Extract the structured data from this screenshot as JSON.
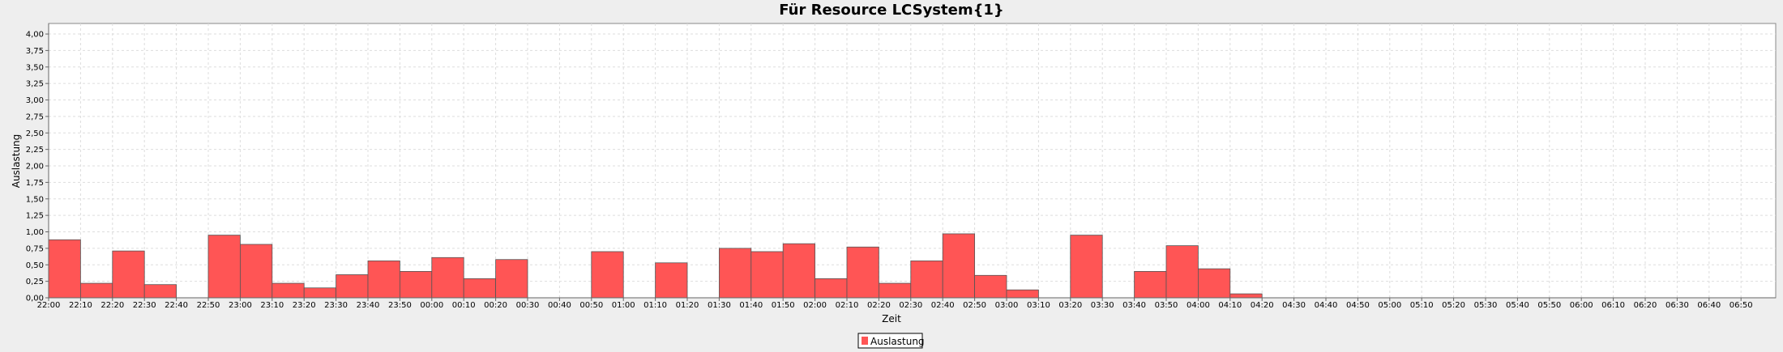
{
  "chart_data": {
    "type": "bar",
    "title": "Für Resource LCSystem{1}",
    "xlabel": "Zeit",
    "ylabel": "Auslastung",
    "ylim": [
      0,
      4.16
    ],
    "grid": true,
    "legend_position": "bottom-center",
    "y_ticks": [
      "0,00",
      "0,25",
      "0,50",
      "0,75",
      "1,00",
      "1,25",
      "1,50",
      "1,75",
      "2,00",
      "2,25",
      "2,50",
      "2,75",
      "3,00",
      "3,25",
      "3,50",
      "3,75",
      "4,00"
    ],
    "categories": [
      "22:00",
      "22:10",
      "22:20",
      "22:30",
      "22:40",
      "22:50",
      "23:00",
      "23:10",
      "23:20",
      "23:30",
      "23:40",
      "23:50",
      "00:00",
      "00:10",
      "00:20",
      "00:30",
      "00:40",
      "00:50",
      "01:00",
      "01:10",
      "01:20",
      "01:30",
      "01:40",
      "01:50",
      "02:00",
      "02:10",
      "02:20",
      "02:30",
      "02:40",
      "02:50",
      "03:00",
      "03:10",
      "03:20",
      "03:30",
      "03:40",
      "03:50",
      "04:00",
      "04:10",
      "04:20",
      "04:30",
      "04:40",
      "04:50",
      "05:00",
      "05:10",
      "05:20",
      "05:30",
      "05:40",
      "05:50",
      "06:00",
      "06:10",
      "06:20",
      "06:30",
      "06:40",
      "06:50"
    ],
    "series": [
      {
        "name": "Auslastung",
        "color": "#ff5555",
        "values": [
          0.88,
          0.22,
          0.71,
          0.2,
          0,
          0.95,
          0.81,
          0.22,
          0.15,
          0.35,
          0.56,
          0.4,
          0.61,
          0.29,
          0.58,
          0,
          0,
          0.7,
          0,
          0.53,
          0,
          0.75,
          0.7,
          0.82,
          0.29,
          0.77,
          0.22,
          0.56,
          0.97,
          0.34,
          0.12,
          0,
          0.95,
          0,
          0.4,
          0.79,
          0.44,
          0.06,
          0,
          0,
          0,
          0,
          0,
          0,
          0,
          0,
          0,
          0,
          0,
          0,
          0,
          0,
          0,
          0
        ]
      }
    ]
  }
}
